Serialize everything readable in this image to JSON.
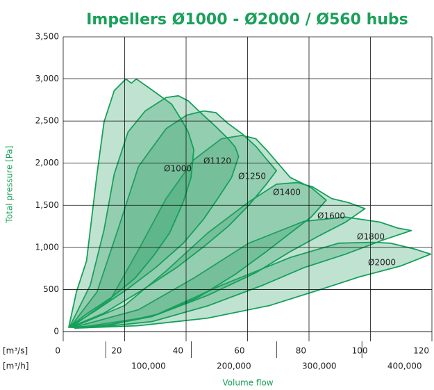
{
  "chart_data": {
    "type": "area-polygon",
    "title": "Impellers Ø1000 - Ø2000 / Ø560 hubs",
    "x_label": "Volume flow",
    "y_label": "Total pressure [Pa]",
    "x_unit": "[m³/s]",
    "x2_unit": "[m³/h]",
    "xlim": [
      0,
      120
    ],
    "xticks": [
      0,
      20,
      40,
      60,
      80,
      100,
      120
    ],
    "x2lim": [
      0,
      432000
    ],
    "x2ticks": [
      {
        "value": 100000,
        "label": "100,000"
      },
      {
        "value": 200000,
        "label": "200,000"
      },
      {
        "value": 300000,
        "label": "300,000"
      },
      {
        "value": 400000,
        "label": "400,000"
      }
    ],
    "x2ticks_minor": [
      50000,
      150000,
      250000,
      350000
    ],
    "ylim": [
      0,
      3500
    ],
    "yticks": [
      0,
      {
        "value": 500,
        "label": "500"
      },
      {
        "value": 1000,
        "label": "1,000"
      },
      {
        "value": 1500,
        "label": "1,500"
      },
      {
        "value": 2000,
        "label": "2,000"
      },
      {
        "value": 2500,
        "label": "2,500"
      },
      {
        "value": 3000,
        "label": "3,000"
      },
      {
        "value": 3500,
        "label": "3,500"
      }
    ],
    "grid": true,
    "series": [
      {
        "name": "Ø2000",
        "color": "#2f9e66",
        "x": [
          3.8,
          29.0,
          51.5,
          73.9,
          89.7,
          100.9,
          106.5,
          114.4,
          119.6,
          109.9,
          96.4,
          82.9,
          67.2,
          47.0,
          24.5
        ],
        "values": [
          40,
          180,
          550,
          880,
          1050,
          1060,
          1050,
          980,
          920,
          780,
          650,
          490,
          310,
          160,
          70
        ]
      },
      {
        "name": "Ø1800",
        "color": "#2f9e66",
        "x": [
          3.4,
          24.5,
          42.5,
          60.4,
          78.4,
          91.9,
          103.1,
          108.8,
          113.3,
          104.3,
          91.9,
          78.4,
          64.9,
          47.0,
          29.0,
          13.3
        ],
        "values": [
          50,
          260,
          635,
          1050,
          1310,
          1360,
          1300,
          1230,
          1200,
          1090,
          920,
          760,
          550,
          305,
          120,
          60
        ]
      },
      {
        "name": "Ø1600",
        "color": "#2f9e66",
        "x": [
          2.9,
          20.0,
          33.5,
          47.0,
          60.4,
          69.4,
          76.2,
          81.1,
          87.4,
          93.0,
          98.2,
          91.9,
          82.9,
          73.9,
          62.7,
          47.0,
          31.2,
          15.5
        ],
        "values": [
          50,
          310,
          720,
          1170,
          1540,
          1750,
          1770,
          1720,
          1580,
          1530,
          1460,
          1300,
          1130,
          950,
          700,
          430,
          210,
          80
        ]
      },
      {
        "name": "Ø1400",
        "color": "#2f9e66",
        "x": [
          2.5,
          15.5,
          24.5,
          33.5,
          42.5,
          51.5,
          58.2,
          62.7,
          66.1,
          69.4,
          73.9,
          80.7,
          85.6,
          80.7,
          73.9,
          66.1,
          56.0,
          43.6,
          29.0,
          13.3
        ],
        "values": [
          50,
          390,
          970,
          1580,
          2040,
          2290,
          2330,
          2290,
          2160,
          2020,
          1830,
          1710,
          1560,
          1360,
          1170,
          950,
          680,
          400,
          180,
          70
        ]
      },
      {
        "name": "Ø1250",
        "color": "#2f9e66",
        "x": [
          2.2,
          11.0,
          17.8,
          24.5,
          33.5,
          40.2,
          45.8,
          49.7,
          53.7,
          58.2,
          62.7,
          66.1,
          69.4,
          66.1,
          60.4,
          53.7,
          45.8,
          36.9,
          25.6,
          13.3
        ],
        "values": [
          50,
          470,
          1210,
          1960,
          2410,
          2570,
          2620,
          2600,
          2470,
          2350,
          2200,
          2050,
          1910,
          1750,
          1500,
          1250,
          1010,
          760,
          490,
          220
        ]
      },
      {
        "name": "Ø1120",
        "color": "#2f9e66",
        "x": [
          2.0,
          8.8,
          13.3,
          16.6,
          21.1,
          26.7,
          33.5,
          37.5,
          40.7,
          44.7,
          49.2,
          53.7,
          56.0,
          57.1,
          54.8,
          50.3,
          45.8,
          39.1,
          30.1,
          21.1,
          11.0
        ],
        "values": [
          50,
          550,
          1210,
          1870,
          2370,
          2620,
          2780,
          2800,
          2740,
          2600,
          2450,
          2290,
          2190,
          2080,
          1830,
          1580,
          1340,
          1050,
          760,
          510,
          260
        ]
      },
      {
        "name": "Ø1000",
        "color": "#2f9e66",
        "x": [
          1.8,
          4.3,
          7.6,
          11.0,
          13.3,
          16.6,
          20.4,
          22.2,
          23.8,
          28.5,
          35.3,
          38.4,
          40.7,
          42.5,
          41.6,
          39.1,
          34.6,
          29.4,
          23.4,
          15.5,
          7.6
        ],
        "values": [
          50,
          470,
          840,
          1870,
          2490,
          2860,
          3000,
          2950,
          3000,
          2880,
          2700,
          2520,
          2370,
          2160,
          1830,
          1540,
          1170,
          900,
          635,
          400,
          210
        ]
      }
    ]
  }
}
